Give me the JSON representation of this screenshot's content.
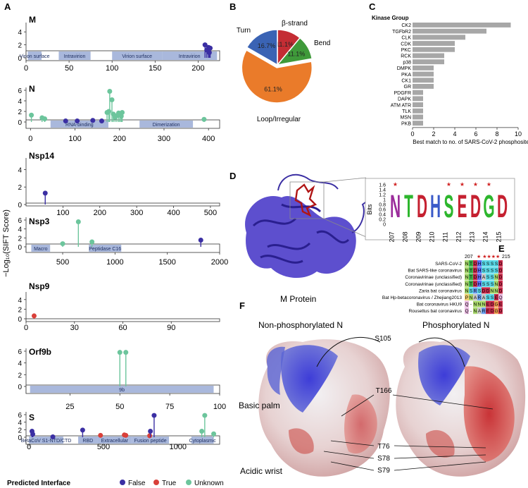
{
  "panel_letters": {
    "a": "A",
    "b": "B",
    "c": "C",
    "d": "D",
    "e": "E",
    "f": "F"
  },
  "panelA": {
    "y_axis_label": "−Log₁₀(SIFT Score)",
    "legend": {
      "title": "Predicted Interface",
      "items": [
        {
          "label": "False",
          "color": "#3b2fa3"
        },
        {
          "label": "True",
          "color": "#d9403a"
        },
        {
          "label": "Unknown",
          "color": "#6cc59c"
        }
      ]
    }
  },
  "chart_data": [
    {
      "type": "scatter",
      "name": "M",
      "title": "M",
      "xlim": [
        0,
        225
      ],
      "ylim": [
        0,
        5
      ],
      "yticks": [
        "0",
        "2",
        "4"
      ],
      "xticks": [
        0,
        50,
        100,
        150,
        200
      ],
      "domains": [
        {
          "label": "Virion surface",
          "start": 2,
          "end": 18
        },
        {
          "label": "Intravirion",
          "start": 38,
          "end": 75
        },
        {
          "label": "Virion surface",
          "start": 100,
          "end": 158
        },
        {
          "label": "Intravirion",
          "start": 158,
          "end": 222
        }
      ],
      "points": [
        {
          "x": 208,
          "y": 2.0,
          "c": "False"
        },
        {
          "x": 210,
          "y": 1.2,
          "c": "False"
        },
        {
          "x": 212,
          "y": 1.6,
          "c": "False"
        },
        {
          "x": 213,
          "y": 0.8,
          "c": "False"
        },
        {
          "x": 214,
          "y": 1.5,
          "c": "False"
        }
      ]
    },
    {
      "type": "scatter",
      "name": "N",
      "title": "N",
      "xlim": [
        -10,
        425
      ],
      "ylim": [
        0,
        6
      ],
      "yticks": [
        "0",
        "2",
        "4",
        "6"
      ],
      "xticks": [
        0,
        100,
        200,
        300,
        400
      ],
      "domains": [
        {
          "label": "RNA-binding",
          "start": 45,
          "end": 175
        },
        {
          "label": "Dimerization",
          "start": 245,
          "end": 365
        }
      ],
      "points": [
        {
          "x": 2,
          "y": 1.3,
          "c": "Unknown"
        },
        {
          "x": 26,
          "y": 0.8,
          "c": "Unknown"
        },
        {
          "x": 32,
          "y": 0.6,
          "c": "Unknown"
        },
        {
          "x": 79,
          "y": 0.2,
          "c": "False"
        },
        {
          "x": 105,
          "y": 0.2,
          "c": "False"
        },
        {
          "x": 140,
          "y": 0.3,
          "c": "False"
        },
        {
          "x": 160,
          "y": 0.2,
          "c": "False"
        },
        {
          "x": 172,
          "y": 1.8,
          "c": "Unknown"
        },
        {
          "x": 176,
          "y": 2.0,
          "c": "Unknown"
        },
        {
          "x": 178,
          "y": 5.8,
          "c": "Unknown"
        },
        {
          "x": 183,
          "y": 4.2,
          "c": "Unknown"
        },
        {
          "x": 186,
          "y": 1.5,
          "c": "Unknown"
        },
        {
          "x": 190,
          "y": 0.9,
          "c": "Unknown"
        },
        {
          "x": 194,
          "y": 1.2,
          "c": "Unknown"
        },
        {
          "x": 198,
          "y": 1.7,
          "c": "Unknown"
        },
        {
          "x": 201,
          "y": 1.5,
          "c": "Unknown"
        },
        {
          "x": 204,
          "y": 1.1,
          "c": "Unknown"
        },
        {
          "x": 206,
          "y": 1.8,
          "c": "Unknown"
        },
        {
          "x": 390,
          "y": 0.5,
          "c": "Unknown"
        }
      ]
    },
    {
      "type": "scatter",
      "name": "Nsp14",
      "title": "Nsp14",
      "xlim": [
        0,
        525
      ],
      "ylim": [
        0,
        5
      ],
      "yticks": [
        "0",
        "2",
        "4"
      ],
      "xticks": [
        100,
        200,
        300,
        400,
        500
      ],
      "domains": [],
      "points": [
        {
          "x": 52,
          "y": 1.3,
          "c": "False"
        }
      ]
    },
    {
      "type": "scatter",
      "name": "Nsp3",
      "title": "Nsp3",
      "xlim": [
        150,
        2000
      ],
      "ylim": [
        0,
        6
      ],
      "yticks": [
        "0",
        "2",
        "4",
        "6"
      ],
      "xticks": [
        500,
        1000,
        1500,
        2000
      ],
      "domains": [
        {
          "label": "Macro",
          "start": 200,
          "end": 380
        },
        {
          "label": "Peptidase C16",
          "start": 750,
          "end": 1060
        }
      ],
      "points": [
        {
          "x": 500,
          "y": 0.7,
          "c": "Unknown"
        },
        {
          "x": 650,
          "y": 5.6,
          "c": "Unknown"
        },
        {
          "x": 780,
          "y": 1.1,
          "c": "Unknown"
        },
        {
          "x": 1820,
          "y": 1.5,
          "c": "False"
        }
      ]
    },
    {
      "type": "scatter",
      "name": "Nsp9",
      "title": "Nsp9",
      "xlim": [
        0,
        120
      ],
      "ylim": [
        0,
        5
      ],
      "yticks": [
        "0",
        "2",
        "4"
      ],
      "xticks": [
        0,
        30,
        60,
        90
      ],
      "domains": [],
      "points": [
        {
          "x": 5,
          "y": 0.6,
          "c": "True"
        }
      ]
    },
    {
      "type": "scatter",
      "name": "Orf9b",
      "title": "Orf9b",
      "xlim": [
        3,
        100
      ],
      "ylim": [
        0,
        6
      ],
      "yticks": [
        "0",
        "2",
        "4",
        "6"
      ],
      "xticks": [
        25,
        50,
        75,
        100
      ],
      "domains": [
        {
          "label": "9b",
          "start": 5,
          "end": 97
        }
      ],
      "points": [
        {
          "x": 50,
          "y": 5.8,
          "c": "Unknown"
        },
        {
          "x": 53,
          "y": 5.8,
          "c": "Unknown"
        }
      ]
    },
    {
      "type": "scatter",
      "name": "S",
      "title": "S",
      "xlim": [
        -20,
        1280
      ],
      "ylim": [
        0,
        6
      ],
      "yticks": [
        "0",
        "2",
        "4",
        "6"
      ],
      "xticks": [
        0,
        500,
        1000
      ],
      "domains": [
        {
          "label": "BetaCoV S1-NTD/CTD",
          "start": 0,
          "end": 230
        },
        {
          "label": "RBD",
          "start": 330,
          "end": 460
        },
        {
          "label": "Extracellular",
          "start": 460,
          "end": 690
        },
        {
          "label": "Fusion peptide",
          "start": 690,
          "end": 940
        },
        {
          "label": "Cytoplasmic",
          "start": 1090,
          "end": 1240
        }
      ],
      "points": [
        {
          "x": 20,
          "y": 1.6,
          "c": "False"
        },
        {
          "x": 25,
          "y": 0.8,
          "c": "False"
        },
        {
          "x": 160,
          "y": 0.1,
          "c": "False"
        },
        {
          "x": 360,
          "y": 1.9,
          "c": "False"
        },
        {
          "x": 480,
          "y": 0.5,
          "c": "True"
        },
        {
          "x": 640,
          "y": 0.6,
          "c": "True"
        },
        {
          "x": 650,
          "y": 0.5,
          "c": "True"
        },
        {
          "x": 810,
          "y": 0.4,
          "c": "True"
        },
        {
          "x": 815,
          "y": 1.6,
          "c": "False"
        },
        {
          "x": 840,
          "y": 5.8,
          "c": "False"
        },
        {
          "x": 1160,
          "y": 1.6,
          "c": "Unknown"
        },
        {
          "x": 1180,
          "y": 5.8,
          "c": "Unknown"
        },
        {
          "x": 1240,
          "y": 0.9,
          "c": "Unknown"
        }
      ]
    },
    {
      "type": "pie",
      "name": "secondary-structure",
      "slices": [
        {
          "label": "β-strand",
          "value": 11.1,
          "text": "11.1%",
          "color": "#c42d34"
        },
        {
          "label": "Bend",
          "value": 11.1,
          "text": "11.1%",
          "color": "#3f9a3a"
        },
        {
          "label": "Loop/Irregular",
          "value": 61.1,
          "text": "61.1%",
          "color": "#ea7b2a"
        },
        {
          "label": "Turn",
          "value": 16.7,
          "text": "16.7%",
          "color": "#3a63b4"
        }
      ]
    },
    {
      "type": "bar",
      "name": "kinase-group",
      "title": "Kinase Group",
      "xlabel": "Best match to no. of SARS-CoV-2 phosphosites",
      "xlim": [
        0,
        10
      ],
      "xticks": [
        0,
        2,
        4,
        6,
        8,
        10
      ],
      "categories": [
        "CK2",
        "TGFbR2",
        "CLK",
        "CDK",
        "PKC",
        "RCK",
        "p38",
        "DMPK",
        "PKA",
        "CK1",
        "GR",
        "PDGFR",
        "DAPK",
        "ATM ATR",
        "TLK",
        "MSN",
        "PKB"
      ],
      "values": [
        9.3,
        7.0,
        5.0,
        4.0,
        4.0,
        3.0,
        3.0,
        2.0,
        2.0,
        2.0,
        2.0,
        1.0,
        1.0,
        1.0,
        1.0,
        1.0,
        1.0
      ]
    },
    {
      "type": "other",
      "name": "sequence-logo",
      "ylabel": "Bits",
      "yticks": [
        "0",
        "0.2",
        "0.4",
        "0.6",
        "0.8",
        "1",
        "1.2",
        "1.4",
        "1.6"
      ],
      "positions": [
        "207",
        "208",
        "209",
        "210",
        "211",
        "212",
        "213",
        "214",
        "215"
      ],
      "stars": [
        true,
        false,
        false,
        false,
        true,
        true,
        true,
        true,
        false
      ],
      "top_letters": [
        "N",
        "T",
        "D",
        "H",
        "S",
        "E",
        "D",
        "G",
        "D"
      ]
    }
  ],
  "panelD": {
    "caption": "M Protein"
  },
  "panelE": {
    "start_label": "207",
    "end_label": "215",
    "stars": "★ ★★★★",
    "rows": [
      {
        "species": "SARS-CoV-2",
        "seq": "NTDHSSSSD"
      },
      {
        "species": "Bat SARS-like coronavirus",
        "seq": "NTDHSSSSD"
      },
      {
        "species": "Coronavirinae (unclassified)",
        "seq": "NTDHASSND"
      },
      {
        "species": "Coronavirinae (unclassified)",
        "seq": "NTDHSSSND"
      },
      {
        "species": "Zaria bat coronavirus",
        "seq": "NSRSDDNND"
      },
      {
        "species": "Bat Hp-betacoronavirus / Zhejiang2013",
        "seq": "PNARASSEQ"
      },
      {
        "species": "Bat coronavirus HKU9",
        "seq": "Q-NNNEDGE"
      },
      {
        "species": "Rousettus bat coronavirus",
        "seq": "Q-NAREDGD"
      }
    ]
  },
  "panelF": {
    "left_title": "Non-phosphorylated N",
    "right_title": "Phosphorylated N",
    "labels": {
      "s105": "S105",
      "t166": "T166",
      "t76": "T76",
      "s78": "S78",
      "s79": "S79",
      "basic": "Basic palm",
      "acidic": "Acidic wrist"
    }
  }
}
